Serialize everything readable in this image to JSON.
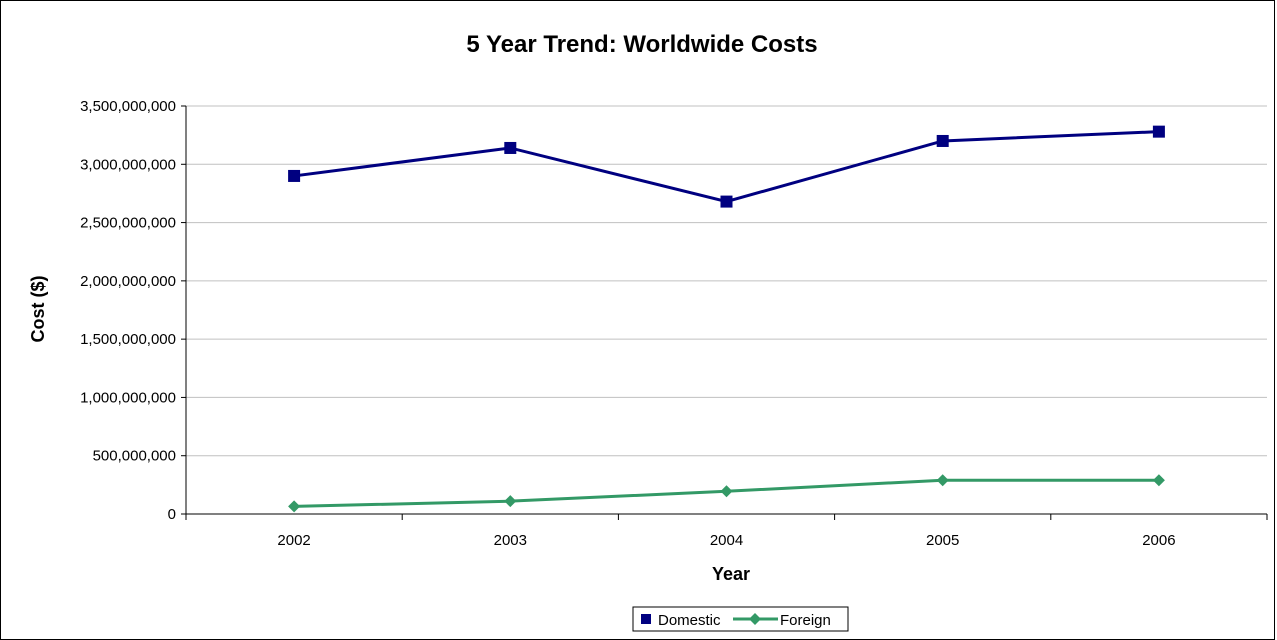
{
  "chart_data": {
    "type": "line",
    "title": "5 Year Trend: Worldwide Costs",
    "xlabel": "Year",
    "ylabel": "Cost ($)",
    "categories": [
      "2002",
      "2003",
      "2004",
      "2005",
      "2006"
    ],
    "ylim": [
      0,
      3500000000
    ],
    "yticks": [
      0,
      500000000,
      1000000000,
      1500000000,
      2000000000,
      2500000000,
      3000000000,
      3500000000
    ],
    "ytick_labels": [
      "0",
      "500,000,000",
      "1,000,000,000",
      "1,500,000,000",
      "2,000,000,000",
      "2,500,000,000",
      "3,000,000,000",
      "3,500,000,000"
    ],
    "grid": "horizontal",
    "legend": "bottom",
    "series": [
      {
        "name": "Domestic",
        "values": [
          2900000000,
          3140000000,
          2680000000,
          3200000000,
          3280000000
        ],
        "color": "#000080",
        "marker": "square"
      },
      {
        "name": "Foreign",
        "values": [
          65000000,
          110000000,
          195000000,
          290000000,
          290000000
        ],
        "color": "#339966",
        "marker": "diamond"
      }
    ]
  }
}
